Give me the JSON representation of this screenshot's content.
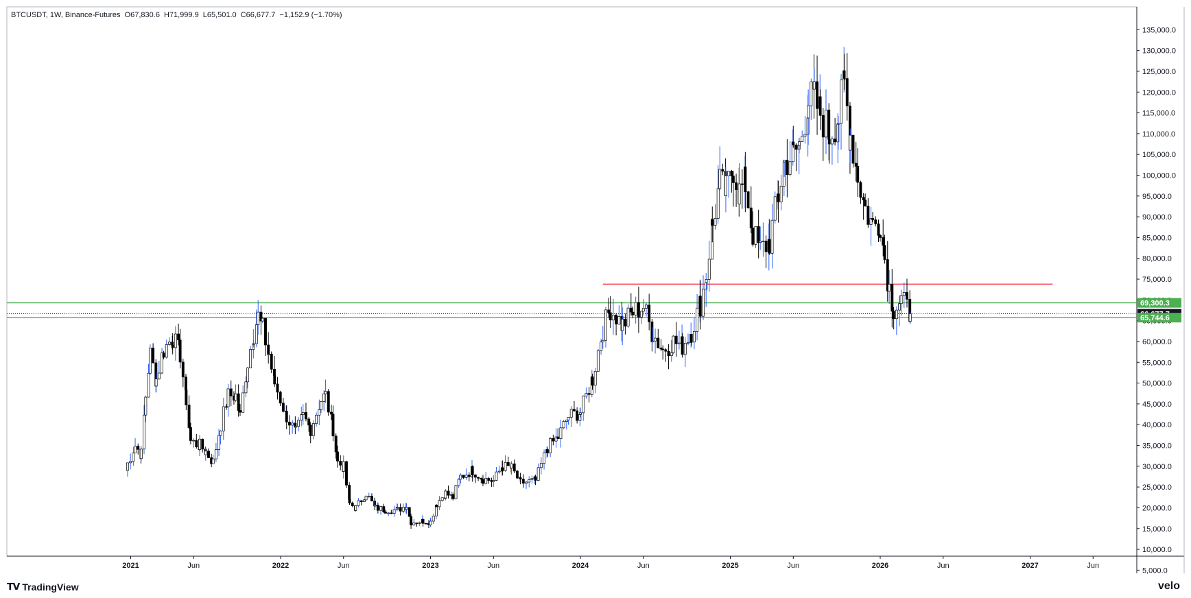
{
  "header": {
    "symbol": "BTCUSDT, 1W, Binance-Futures",
    "open": "O67,830.6",
    "high": "H71,999.9",
    "low": "L65,501.0",
    "close": "C66,677.7",
    "change": "−1,152.9 (−1.70%)"
  },
  "branding": {
    "logo": "TradingView",
    "logo_icon": "tradingview-logo-icon",
    "watermark": "velo"
  },
  "colors": {
    "candle_up": "#ffffff",
    "candle_down": "#000000",
    "wick_up": "#2962ff",
    "wick_down": "#000000",
    "support": "#4caf50",
    "resistance": "#f23645",
    "axis": "#131722"
  },
  "chart_data": {
    "type": "candlestick",
    "interval": "1W",
    "ylim": [
      5000,
      135000
    ],
    "yticks": [
      "135,000.0",
      "130,000.0",
      "125,000.0",
      "120,000.0",
      "115,000.0",
      "110,000.0",
      "105,000.0",
      "100,000.0",
      "95,000.0",
      "90,000.0",
      "85,000.0",
      "80,000.0",
      "75,000.0",
      "70,000.0",
      "65,000.0",
      "60,000.0",
      "55,000.0",
      "50,000.0",
      "45,000.0",
      "40,000.0",
      "35,000.0",
      "30,000.0",
      "25,000.0",
      "20,000.0",
      "15,000.0",
      "10,000.0",
      "5,000.0"
    ],
    "xticks": [
      {
        "label": "2021",
        "t": 2021.0,
        "bold": true
      },
      {
        "label": "Jun",
        "t": 2021.42,
        "bold": false
      },
      {
        "label": "2022",
        "t": 2022.0,
        "bold": true
      },
      {
        "label": "Jun",
        "t": 2022.42,
        "bold": false
      },
      {
        "label": "2023",
        "t": 2023.0,
        "bold": true
      },
      {
        "label": "Jun",
        "t": 2023.42,
        "bold": false
      },
      {
        "label": "2024",
        "t": 2024.0,
        "bold": true
      },
      {
        "label": "Jun",
        "t": 2024.42,
        "bold": false
      },
      {
        "label": "2025",
        "t": 2025.0,
        "bold": true
      },
      {
        "label": "Jun",
        "t": 2025.42,
        "bold": false
      },
      {
        "label": "2026",
        "t": 2026.0,
        "bold": true
      },
      {
        "label": "Jun",
        "t": 2026.42,
        "bold": false
      },
      {
        "label": "2027",
        "t": 2027.0,
        "bold": true
      },
      {
        "label": "Jun",
        "t": 2027.42,
        "bold": false
      }
    ],
    "price_labels": [
      {
        "name": "upper-support-label",
        "value": 69300.3,
        "text": "69,300.3",
        "color": "#4caf50"
      },
      {
        "name": "current-price-label",
        "value": 66677.7,
        "text": "66,677.7",
        "color": "#131722"
      },
      {
        "name": "lower-support-label",
        "value": 65744.6,
        "text": "65,744.6",
        "color": "#4caf50"
      }
    ],
    "levels": [
      {
        "name": "resistance-line",
        "price": 73800,
        "from": 2024.15,
        "to": 2027.15,
        "color": "#f23645"
      },
      {
        "name": "upper-support-line",
        "price": 69300.3,
        "from": 2020.0,
        "to": 2028.0,
        "color": "#4caf50"
      },
      {
        "name": "lower-support-line",
        "price": 65744.6,
        "from": 2020.0,
        "to": 2028.0,
        "color": "#4caf50"
      },
      {
        "name": "current-price-line",
        "price": 66677.7,
        "from": 2020.0,
        "to": 2028.0,
        "color": "#131722",
        "dotted": true
      }
    ],
    "anchors": [
      [
        2020.96,
        29000
      ],
      [
        2021.03,
        35000
      ],
      [
        2021.07,
        33000
      ],
      [
        2021.1,
        47000
      ],
      [
        2021.13,
        57000
      ],
      [
        2021.17,
        51000
      ],
      [
        2021.22,
        58000
      ],
      [
        2021.28,
        61000
      ],
      [
        2021.33,
        57000
      ],
      [
        2021.37,
        46000
      ],
      [
        2021.4,
        36000
      ],
      [
        2021.46,
        35000
      ],
      [
        2021.5,
        33500
      ],
      [
        2021.55,
        31000
      ],
      [
        2021.6,
        40000
      ],
      [
        2021.65,
        47000
      ],
      [
        2021.7,
        47000
      ],
      [
        2021.73,
        42000
      ],
      [
        2021.78,
        55000
      ],
      [
        2021.82,
        62000
      ],
      [
        2021.85,
        66000
      ],
      [
        2021.88,
        63000
      ],
      [
        2021.92,
        57000
      ],
      [
        2021.96,
        50000
      ],
      [
        2022.04,
        42000
      ],
      [
        2022.1,
        38000
      ],
      [
        2022.15,
        42000
      ],
      [
        2022.2,
        39000
      ],
      [
        2022.27,
        46000
      ],
      [
        2022.3,
        47000
      ],
      [
        2022.35,
        39000
      ],
      [
        2022.38,
        31000
      ],
      [
        2022.42,
        29800
      ],
      [
        2022.46,
        21000
      ],
      [
        2022.5,
        20000
      ],
      [
        2022.57,
        23500
      ],
      [
        2022.63,
        20000
      ],
      [
        2022.7,
        19500
      ],
      [
        2022.78,
        19500
      ],
      [
        2022.84,
        20500
      ],
      [
        2022.87,
        16500
      ],
      [
        2022.95,
        16800
      ],
      [
        2023.0,
        16600
      ],
      [
        2023.04,
        21000
      ],
      [
        2023.1,
        23500
      ],
      [
        2023.15,
        22500
      ],
      [
        2023.2,
        27500
      ],
      [
        2023.28,
        29000
      ],
      [
        2023.35,
        27000
      ],
      [
        2023.42,
        26500
      ],
      [
        2023.48,
        30000
      ],
      [
        2023.54,
        29500
      ],
      [
        2023.6,
        26000
      ],
      [
        2023.7,
        26500
      ],
      [
        2023.78,
        34500
      ],
      [
        2023.85,
        37000
      ],
      [
        2023.92,
        42000
      ],
      [
        2024.0,
        43000
      ],
      [
        2024.08,
        51000
      ],
      [
        2024.15,
        63000
      ],
      [
        2024.2,
        68000
      ],
      [
        2024.28,
        64000
      ],
      [
        2024.35,
        67000
      ],
      [
        2024.42,
        68500
      ],
      [
        2024.48,
        62000
      ],
      [
        2024.55,
        58000
      ],
      [
        2024.62,
        60000
      ],
      [
        2024.68,
        59000
      ],
      [
        2024.74,
        62500
      ],
      [
        2024.8,
        69000
      ],
      [
        2024.84,
        76000
      ],
      [
        2024.88,
        88000
      ],
      [
        2024.93,
        98000
      ],
      [
        2024.97,
        96000
      ],
      [
        2025.02,
        102000
      ],
      [
        2025.06,
        96000
      ],
      [
        2025.1,
        98000
      ],
      [
        2025.15,
        86000
      ],
      [
        2025.2,
        82000
      ],
      [
        2025.26,
        84000
      ],
      [
        2025.32,
        95000
      ],
      [
        2025.36,
        103000
      ],
      [
        2025.42,
        105000
      ],
      [
        2025.46,
        107000
      ],
      [
        2025.52,
        118000
      ],
      [
        2025.56,
        118000
      ],
      [
        2025.6,
        115000
      ],
      [
        2025.66,
        110000
      ],
      [
        2025.72,
        114000
      ],
      [
        2025.76,
        122000
      ],
      [
        2025.8,
        110000
      ],
      [
        2025.85,
        100000
      ],
      [
        2025.9,
        92000
      ],
      [
        2025.95,
        88000
      ],
      [
        2026.0,
        89000
      ],
      [
        2026.03,
        80000
      ],
      [
        2026.06,
        73000
      ],
      [
        2026.09,
        68000
      ],
      [
        2026.14,
        70000
      ],
      [
        2026.2,
        66700
      ]
    ]
  }
}
